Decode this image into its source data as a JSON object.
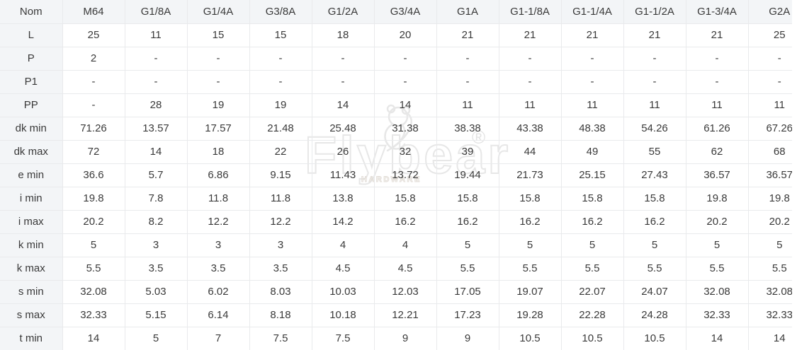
{
  "watermark": {
    "brand": "Flybear",
    "registered": "®",
    "subtitle": "HARDWARE"
  },
  "colors": {
    "header_bg": "#f3f5f7",
    "border": "#e9eaec",
    "text": "#3a3a3a",
    "watermark": "#e7e7e7"
  },
  "table": {
    "columns": [
      "Nom",
      "M64",
      "G1/8A",
      "G1/4A",
      "G3/8A",
      "G1/2A",
      "G3/4A",
      "G1A",
      "G1-1/8A",
      "G1-1/4A",
      "G1-1/2A",
      "G1-3/4A",
      "G2A"
    ],
    "rows": [
      {
        "label": "L",
        "values": [
          "25",
          "11",
          "15",
          "15",
          "18",
          "20",
          "21",
          "21",
          "21",
          "21",
          "21",
          "25"
        ]
      },
      {
        "label": "P",
        "values": [
          "2",
          "-",
          "-",
          "-",
          "-",
          "-",
          "-",
          "-",
          "-",
          "-",
          "-",
          "-"
        ]
      },
      {
        "label": "P1",
        "values": [
          "-",
          "-",
          "-",
          "-",
          "-",
          "-",
          "-",
          "-",
          "-",
          "-",
          "-",
          "-"
        ]
      },
      {
        "label": "PP",
        "values": [
          "-",
          "28",
          "19",
          "19",
          "14",
          "14",
          "11",
          "11",
          "11",
          "11",
          "11",
          "11"
        ]
      },
      {
        "label": "dk min",
        "values": [
          "71.26",
          "13.57",
          "17.57",
          "21.48",
          "25.48",
          "31.38",
          "38.38",
          "43.38",
          "48.38",
          "54.26",
          "61.26",
          "67.26"
        ]
      },
      {
        "label": "dk max",
        "values": [
          "72",
          "14",
          "18",
          "22",
          "26",
          "32",
          "39",
          "44",
          "49",
          "55",
          "62",
          "68"
        ]
      },
      {
        "label": "e min",
        "values": [
          "36.6",
          "5.7",
          "6.86",
          "9.15",
          "11.43",
          "13.72",
          "19.44",
          "21.73",
          "25.15",
          "27.43",
          "36.57",
          "36.57"
        ]
      },
      {
        "label": "i min",
        "values": [
          "19.8",
          "7.8",
          "11.8",
          "11.8",
          "13.8",
          "15.8",
          "15.8",
          "15.8",
          "15.8",
          "15.8",
          "19.8",
          "19.8"
        ]
      },
      {
        "label": "i max",
        "values": [
          "20.2",
          "8.2",
          "12.2",
          "12.2",
          "14.2",
          "16.2",
          "16.2",
          "16.2",
          "16.2",
          "16.2",
          "20.2",
          "20.2"
        ]
      },
      {
        "label": "k min",
        "values": [
          "5",
          "3",
          "3",
          "3",
          "4",
          "4",
          "5",
          "5",
          "5",
          "5",
          "5",
          "5"
        ]
      },
      {
        "label": "k max",
        "values": [
          "5.5",
          "3.5",
          "3.5",
          "3.5",
          "4.5",
          "4.5",
          "5.5",
          "5.5",
          "5.5",
          "5.5",
          "5.5",
          "5.5"
        ]
      },
      {
        "label": "s min",
        "values": [
          "32.08",
          "5.03",
          "6.02",
          "8.03",
          "10.03",
          "12.03",
          "17.05",
          "19.07",
          "22.07",
          "24.07",
          "32.08",
          "32.08"
        ]
      },
      {
        "label": "s max",
        "values": [
          "32.33",
          "5.15",
          "6.14",
          "8.18",
          "10.18",
          "12.21",
          "17.23",
          "19.28",
          "22.28",
          "24.28",
          "32.33",
          "32.33"
        ]
      },
      {
        "label": "t min",
        "values": [
          "14",
          "5",
          "7",
          "7.5",
          "7.5",
          "9",
          "9",
          "10.5",
          "10.5",
          "10.5",
          "14",
          "14"
        ]
      }
    ]
  }
}
